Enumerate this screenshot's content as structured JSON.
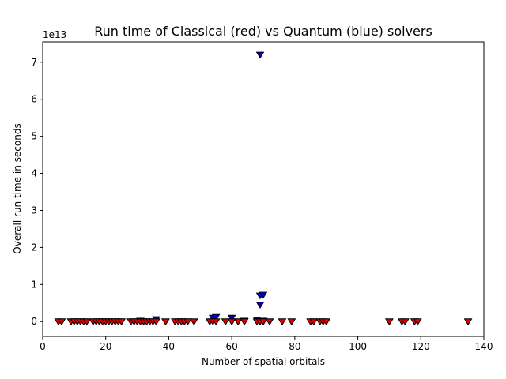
{
  "chart_data": {
    "type": "scatter",
    "title": "Run time of Classical (red) vs Quantum (blue) solvers",
    "xlabel": "Number of spatial orbitals",
    "ylabel": "Overall run time in seconds",
    "y_offset_label": "1e13",
    "xlim": [
      0,
      140
    ],
    "ylim": [
      -0.4,
      7.55
    ],
    "y_scale_factor": 10000000000000.0,
    "x_ticks": [
      0,
      20,
      40,
      60,
      80,
      100,
      120,
      140
    ],
    "y_ticks": [
      0,
      1,
      2,
      3,
      4,
      5,
      6,
      7
    ],
    "grid": false,
    "marker": "triangle-down",
    "series": [
      {
        "color": "#0000cc",
        "points": [
          [
            5,
            0
          ],
          [
            6,
            0
          ],
          [
            9,
            0
          ],
          [
            10,
            0
          ],
          [
            11,
            0
          ],
          [
            12,
            0
          ],
          [
            13,
            0
          ],
          [
            14,
            0
          ],
          [
            16,
            0
          ],
          [
            17,
            0
          ],
          [
            18,
            0
          ],
          [
            19,
            0
          ],
          [
            20,
            0
          ],
          [
            21,
            0
          ],
          [
            22,
            0
          ],
          [
            23,
            0
          ],
          [
            24,
            0
          ],
          [
            25,
            0
          ],
          [
            28,
            0
          ],
          [
            29,
            0
          ],
          [
            30,
            0
          ],
          [
            31,
            0.02
          ],
          [
            32,
            0
          ],
          [
            33,
            0
          ],
          [
            34,
            0
          ],
          [
            35,
            0
          ],
          [
            36,
            0.06
          ],
          [
            39,
            0
          ],
          [
            42,
            0
          ],
          [
            43,
            0
          ],
          [
            44,
            0
          ],
          [
            45,
            0
          ],
          [
            46,
            0
          ],
          [
            48,
            0
          ],
          [
            53,
            0
          ],
          [
            54,
            0.1
          ],
          [
            55,
            0.12
          ],
          [
            55,
            0
          ],
          [
            58,
            0
          ],
          [
            60,
            0.1
          ],
          [
            60,
            0
          ],
          [
            62,
            0
          ],
          [
            64,
            0
          ],
          [
            64,
            0.02
          ],
          [
            68,
            0
          ],
          [
            68,
            0.05
          ],
          [
            69,
            7.2
          ],
          [
            69,
            0.7
          ],
          [
            70,
            0.72
          ],
          [
            69,
            0.45
          ],
          [
            70,
            0.02
          ],
          [
            69,
            0
          ],
          [
            70,
            0
          ],
          [
            72,
            0
          ],
          [
            76,
            0
          ],
          [
            79,
            0
          ],
          [
            85,
            0
          ],
          [
            86,
            0
          ],
          [
            88,
            0
          ],
          [
            89,
            0
          ],
          [
            90,
            0
          ],
          [
            110,
            0
          ],
          [
            114,
            0
          ],
          [
            115,
            0
          ],
          [
            118,
            0
          ],
          [
            119,
            0
          ],
          [
            135,
            0
          ]
        ]
      },
      {
        "color": "#dd0000",
        "points": [
          [
            5,
            0
          ],
          [
            6,
            0
          ],
          [
            9,
            0
          ],
          [
            10,
            0
          ],
          [
            11,
            0
          ],
          [
            12,
            0
          ],
          [
            13,
            0
          ],
          [
            14,
            0
          ],
          [
            16,
            0
          ],
          [
            17,
            0
          ],
          [
            18,
            0
          ],
          [
            19,
            0
          ],
          [
            20,
            0
          ],
          [
            21,
            0
          ],
          [
            22,
            0
          ],
          [
            23,
            0
          ],
          [
            24,
            0
          ],
          [
            25,
            0
          ],
          [
            28,
            0
          ],
          [
            29,
            0
          ],
          [
            30,
            0
          ],
          [
            31,
            0
          ],
          [
            32,
            0
          ],
          [
            33,
            0
          ],
          [
            34,
            0
          ],
          [
            35,
            0
          ],
          [
            36,
            0
          ],
          [
            39,
            0
          ],
          [
            42,
            0
          ],
          [
            43,
            0
          ],
          [
            44,
            0
          ],
          [
            45,
            0
          ],
          [
            46,
            0
          ],
          [
            48,
            0
          ],
          [
            53,
            0
          ],
          [
            54,
            0
          ],
          [
            55,
            0
          ],
          [
            58,
            0
          ],
          [
            60,
            0
          ],
          [
            62,
            0
          ],
          [
            64,
            0
          ],
          [
            68,
            0
          ],
          [
            69,
            0
          ],
          [
            70,
            0
          ],
          [
            72,
            0
          ],
          [
            76,
            0
          ],
          [
            79,
            0
          ],
          [
            85,
            0
          ],
          [
            86,
            0
          ],
          [
            88,
            0
          ],
          [
            89,
            0
          ],
          [
            90,
            0
          ],
          [
            110,
            0
          ],
          [
            114,
            0
          ],
          [
            115,
            0
          ],
          [
            118,
            0
          ],
          [
            119,
            0
          ],
          [
            135,
            0
          ]
        ]
      }
    ]
  }
}
